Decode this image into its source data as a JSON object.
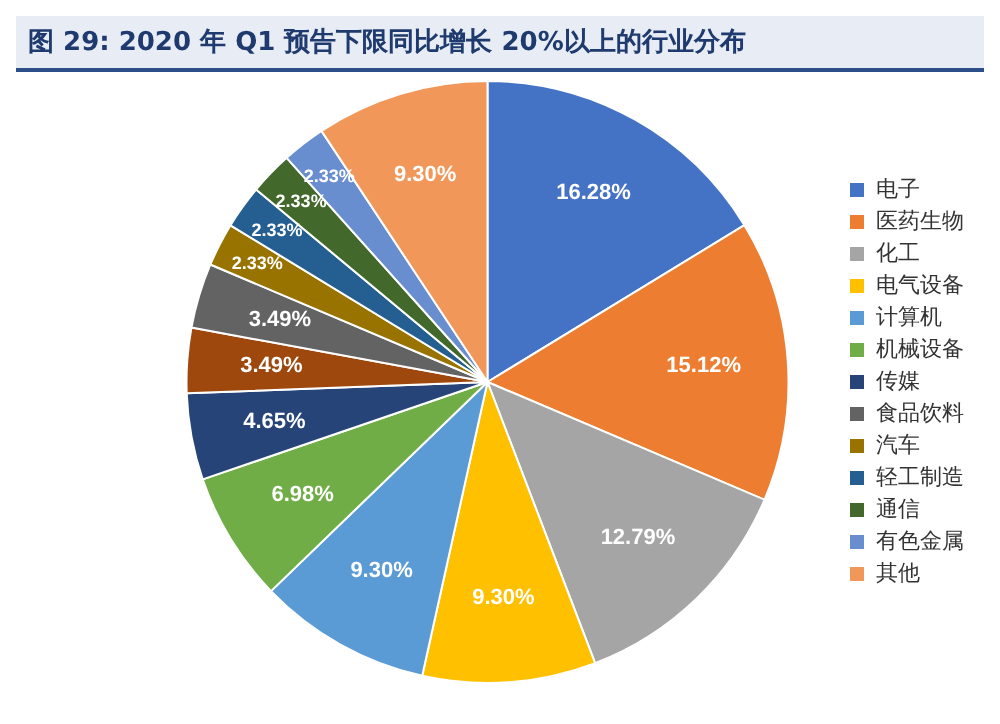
{
  "chart_data": {
    "type": "pie",
    "title": "图 29: 2020 年 Q1 预告下限同比增长 20%以上的行业分布",
    "categories": [
      "电子",
      "医药生物",
      "化工",
      "电气设备",
      "计算机",
      "机械设备",
      "传媒",
      null,
      "食品饮料",
      "汽车",
      "轻工制造",
      "通信",
      "有色金属",
      "其他"
    ],
    "values": [
      16.28,
      15.12,
      12.79,
      9.3,
      9.3,
      6.98,
      4.65,
      3.49,
      3.49,
      2.33,
      2.33,
      2.33,
      2.33,
      9.3
    ],
    "value_labels": [
      "16.28%",
      "15.12%",
      "12.79%",
      "9.30%",
      "9.30%",
      "6.98%",
      "4.65%",
      "3.49%",
      "3.49%",
      "2.33%",
      "2.33%",
      "2.33%",
      "2.33%",
      "9.30%"
    ],
    "colors": [
      "#4472c4",
      "#ed7d31",
      "#a5a5a5",
      "#ffc000",
      "#5b9bd5",
      "#70ad47",
      "#264478",
      "#9e480e",
      "#636363",
      "#997300",
      "#255e91",
      "#43682b",
      "#698ed0",
      "#f1975a"
    ],
    "legend": "right"
  }
}
